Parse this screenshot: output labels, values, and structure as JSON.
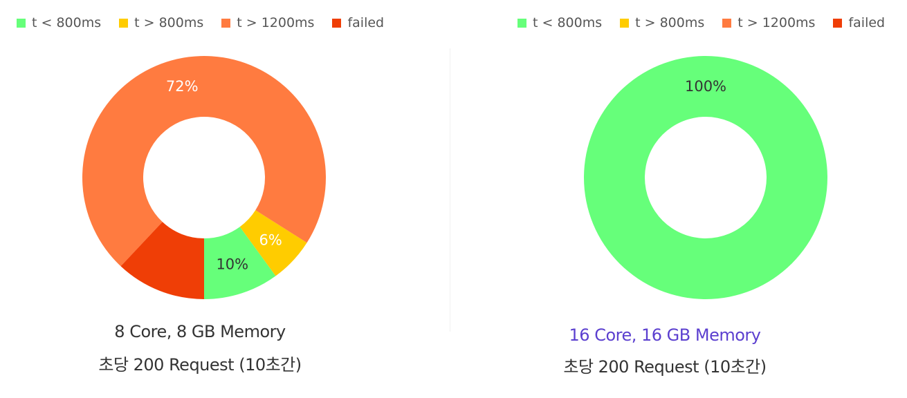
{
  "colors": {
    "t_lt_800": "#66ff7a",
    "t_gt_800": "#ffcc00",
    "t_gt_1200": "#ff7b40",
    "failed": "#ef3e06",
    "highlight_caption": "#5b3fcf"
  },
  "chart_data": [
    {
      "type": "pie",
      "donut": true,
      "legend_position": "top-left",
      "legend": [
        "t < 800ms",
        "t > 800ms",
        "t > 1200ms",
        "failed"
      ],
      "series": [
        {
          "name": "t < 800ms",
          "value": 10,
          "label": "10%",
          "color": "#66ff7a"
        },
        {
          "name": "t > 800ms",
          "value": 6,
          "label": "6%",
          "color": "#ffcc00"
        },
        {
          "name": "t > 1200ms",
          "value": 72,
          "label": "72%",
          "color": "#ff7b40"
        },
        {
          "name": "failed",
          "value": 12,
          "label": "",
          "color": "#ef3e06"
        }
      ],
      "caption_line1": "8 Core, 8 GB Memory",
      "caption_line2": "초당 200 Request (10초간)"
    },
    {
      "type": "pie",
      "donut": true,
      "legend_position": "top-right",
      "legend": [
        "t < 800ms",
        "t > 800ms",
        "t > 1200ms",
        "failed"
      ],
      "series": [
        {
          "name": "t < 800ms",
          "value": 100,
          "label": "100%",
          "color": "#66ff7a"
        },
        {
          "name": "t > 800ms",
          "value": 0,
          "label": "",
          "color": "#ffcc00"
        },
        {
          "name": "t > 1200ms",
          "value": 0,
          "label": "",
          "color": "#ff7b40"
        },
        {
          "name": "failed",
          "value": 0,
          "label": "",
          "color": "#ef3e06"
        }
      ],
      "caption_line1": "16 Core, 16 GB Memory",
      "caption_line2": "초당 200 Request (10초간)"
    }
  ]
}
